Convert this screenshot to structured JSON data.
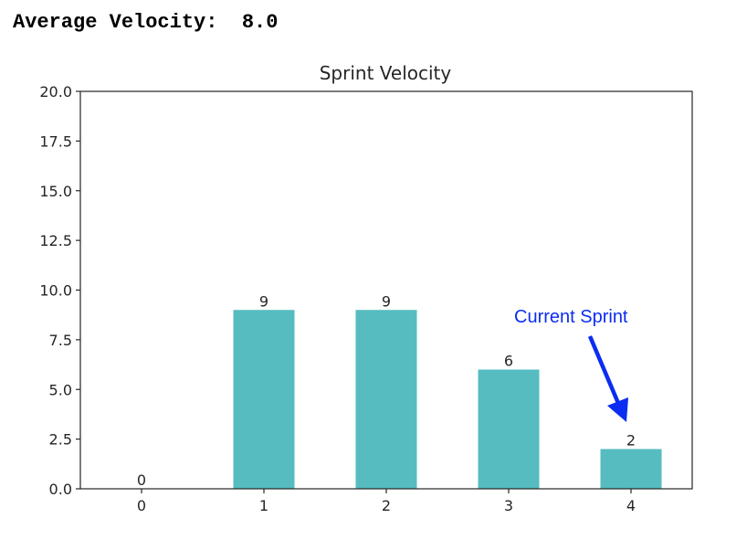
{
  "summary": {
    "label": "Average Velocity:",
    "value": "8.0"
  },
  "chart_data": {
    "type": "bar",
    "title": "Sprint Velocity",
    "xlabel": "",
    "ylabel": "",
    "categories": [
      "0",
      "1",
      "2",
      "3",
      "4"
    ],
    "values": [
      0,
      9,
      9,
      6,
      2
    ],
    "data_labels": [
      "0",
      "9",
      "9",
      "6",
      "2"
    ],
    "ylim": [
      0,
      20
    ],
    "yticks": [
      "0.0",
      "2.5",
      "5.0",
      "7.5",
      "10.0",
      "12.5",
      "15.0",
      "17.5",
      "20.0"
    ],
    "ytick_values": [
      0,
      2.5,
      5,
      7.5,
      10,
      12.5,
      15,
      17.5,
      20
    ],
    "bar_color": "#56bcbf",
    "grid": false,
    "annotation": {
      "text": "Current Sprint",
      "target_category": "4",
      "color": "#0b2df2"
    }
  }
}
